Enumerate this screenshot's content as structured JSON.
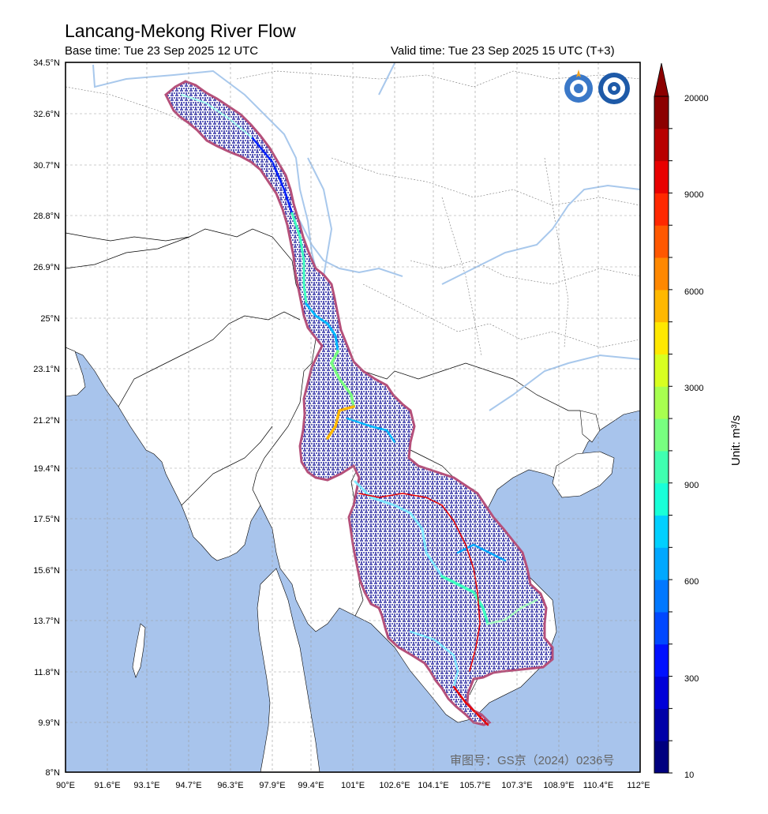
{
  "header": {
    "title": "Lancang-Mekong River Flow",
    "base_time": "Base time: Tue 23 Sep 2025 12 UTC",
    "valid_time": "Valid time: Tue 23 Sep 2025 15 UTC (T+3)"
  },
  "map": {
    "lat_labels": [
      "34.5°N",
      "32.6°N",
      "30.7°N",
      "28.8°N",
      "26.9°N",
      "25°N",
      "23.1°N",
      "21.2°N",
      "19.4°N",
      "17.5°N",
      "15.6°N",
      "13.7°N",
      "11.8°N",
      "9.9°N",
      "8°N"
    ],
    "lon_labels": [
      "90°E",
      "91.6°E",
      "93.1°E",
      "94.7°E",
      "96.3°E",
      "97.9°E",
      "99.4°E",
      "101°E",
      "102.6°E",
      "104.1°E",
      "105.7°E",
      "107.3°E",
      "108.9°E",
      "110.4°E",
      "112°E"
    ],
    "extent": {
      "lon_min": 90,
      "lon_max": 112,
      "lat_min": 8,
      "lat_max": 34.5
    },
    "colors": {
      "sea": "#a8c4ec",
      "land": "#ffffff",
      "basin_outline": "#b5507a",
      "river_blue": "#a8c8ec",
      "subbasin_line": "#e0202a"
    },
    "watermark": "审图号：GS京（2024）0236号",
    "logos": [
      "wmo-emblem",
      "cma-emblem"
    ]
  },
  "colorbar": {
    "unit": "Unit: m³/s",
    "tick_labels": [
      "20000",
      "9000",
      "6000",
      "3000",
      "900",
      "600",
      "300",
      "10"
    ],
    "colors": [
      "#00007f",
      "#0000a8",
      "#0000d8",
      "#0010ff",
      "#0048ff",
      "#0078ff",
      "#00a8ff",
      "#00d0ff",
      "#18ffd8",
      "#40ffb0",
      "#78ff80",
      "#a8ff50",
      "#d8ff20",
      "#ffe800",
      "#ffb800",
      "#ff8800",
      "#ff5800",
      "#ff2800",
      "#e80000",
      "#b80000",
      "#8c0000"
    ]
  }
}
